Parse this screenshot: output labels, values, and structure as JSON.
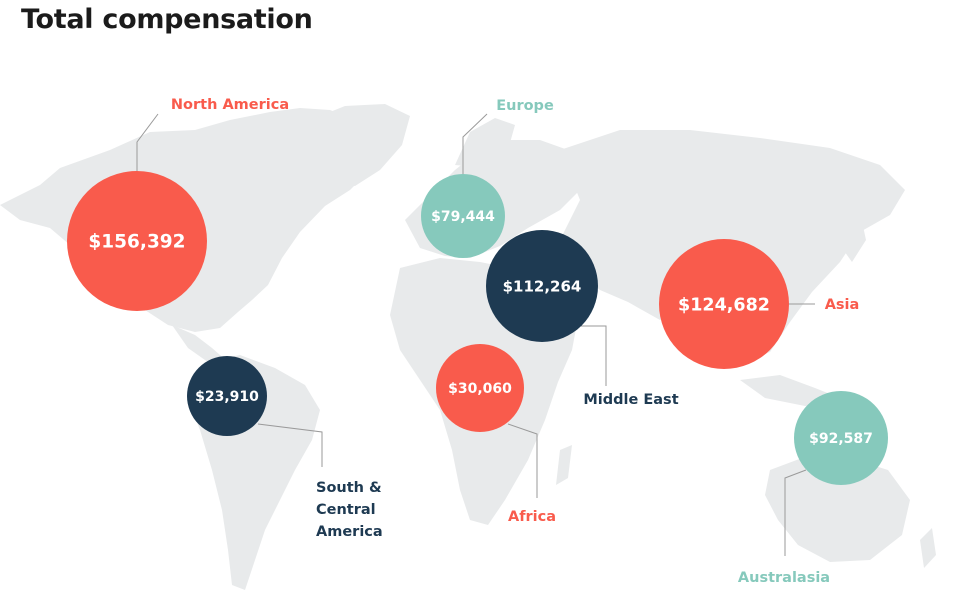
{
  "title": "Total compensation",
  "colors": {
    "coral": "#f95b4c",
    "teal": "#86c9bc",
    "navy": "#1e3a52",
    "land": "#e8eaeb",
    "leader": "#9a9a9a"
  },
  "regions": [
    {
      "id": "north-america",
      "name": "North America",
      "value": "$156,392",
      "color": "coral"
    },
    {
      "id": "europe",
      "name": "Europe",
      "value": "$79,444",
      "color": "teal"
    },
    {
      "id": "middle-east",
      "name": "Middle East",
      "value": "$112,264",
      "color": "navy"
    },
    {
      "id": "asia",
      "name": "Asia",
      "value": "$124,682",
      "color": "coral"
    },
    {
      "id": "south-central-america",
      "name": "South & Central America",
      "name_lines": [
        "South &",
        "Central",
        "America"
      ],
      "value": "$23,910",
      "color": "navy"
    },
    {
      "id": "africa",
      "name": "Africa",
      "value": "$30,060",
      "color": "coral"
    },
    {
      "id": "australasia",
      "name": "Australasia",
      "value": "$92,587",
      "color": "teal"
    }
  ]
}
